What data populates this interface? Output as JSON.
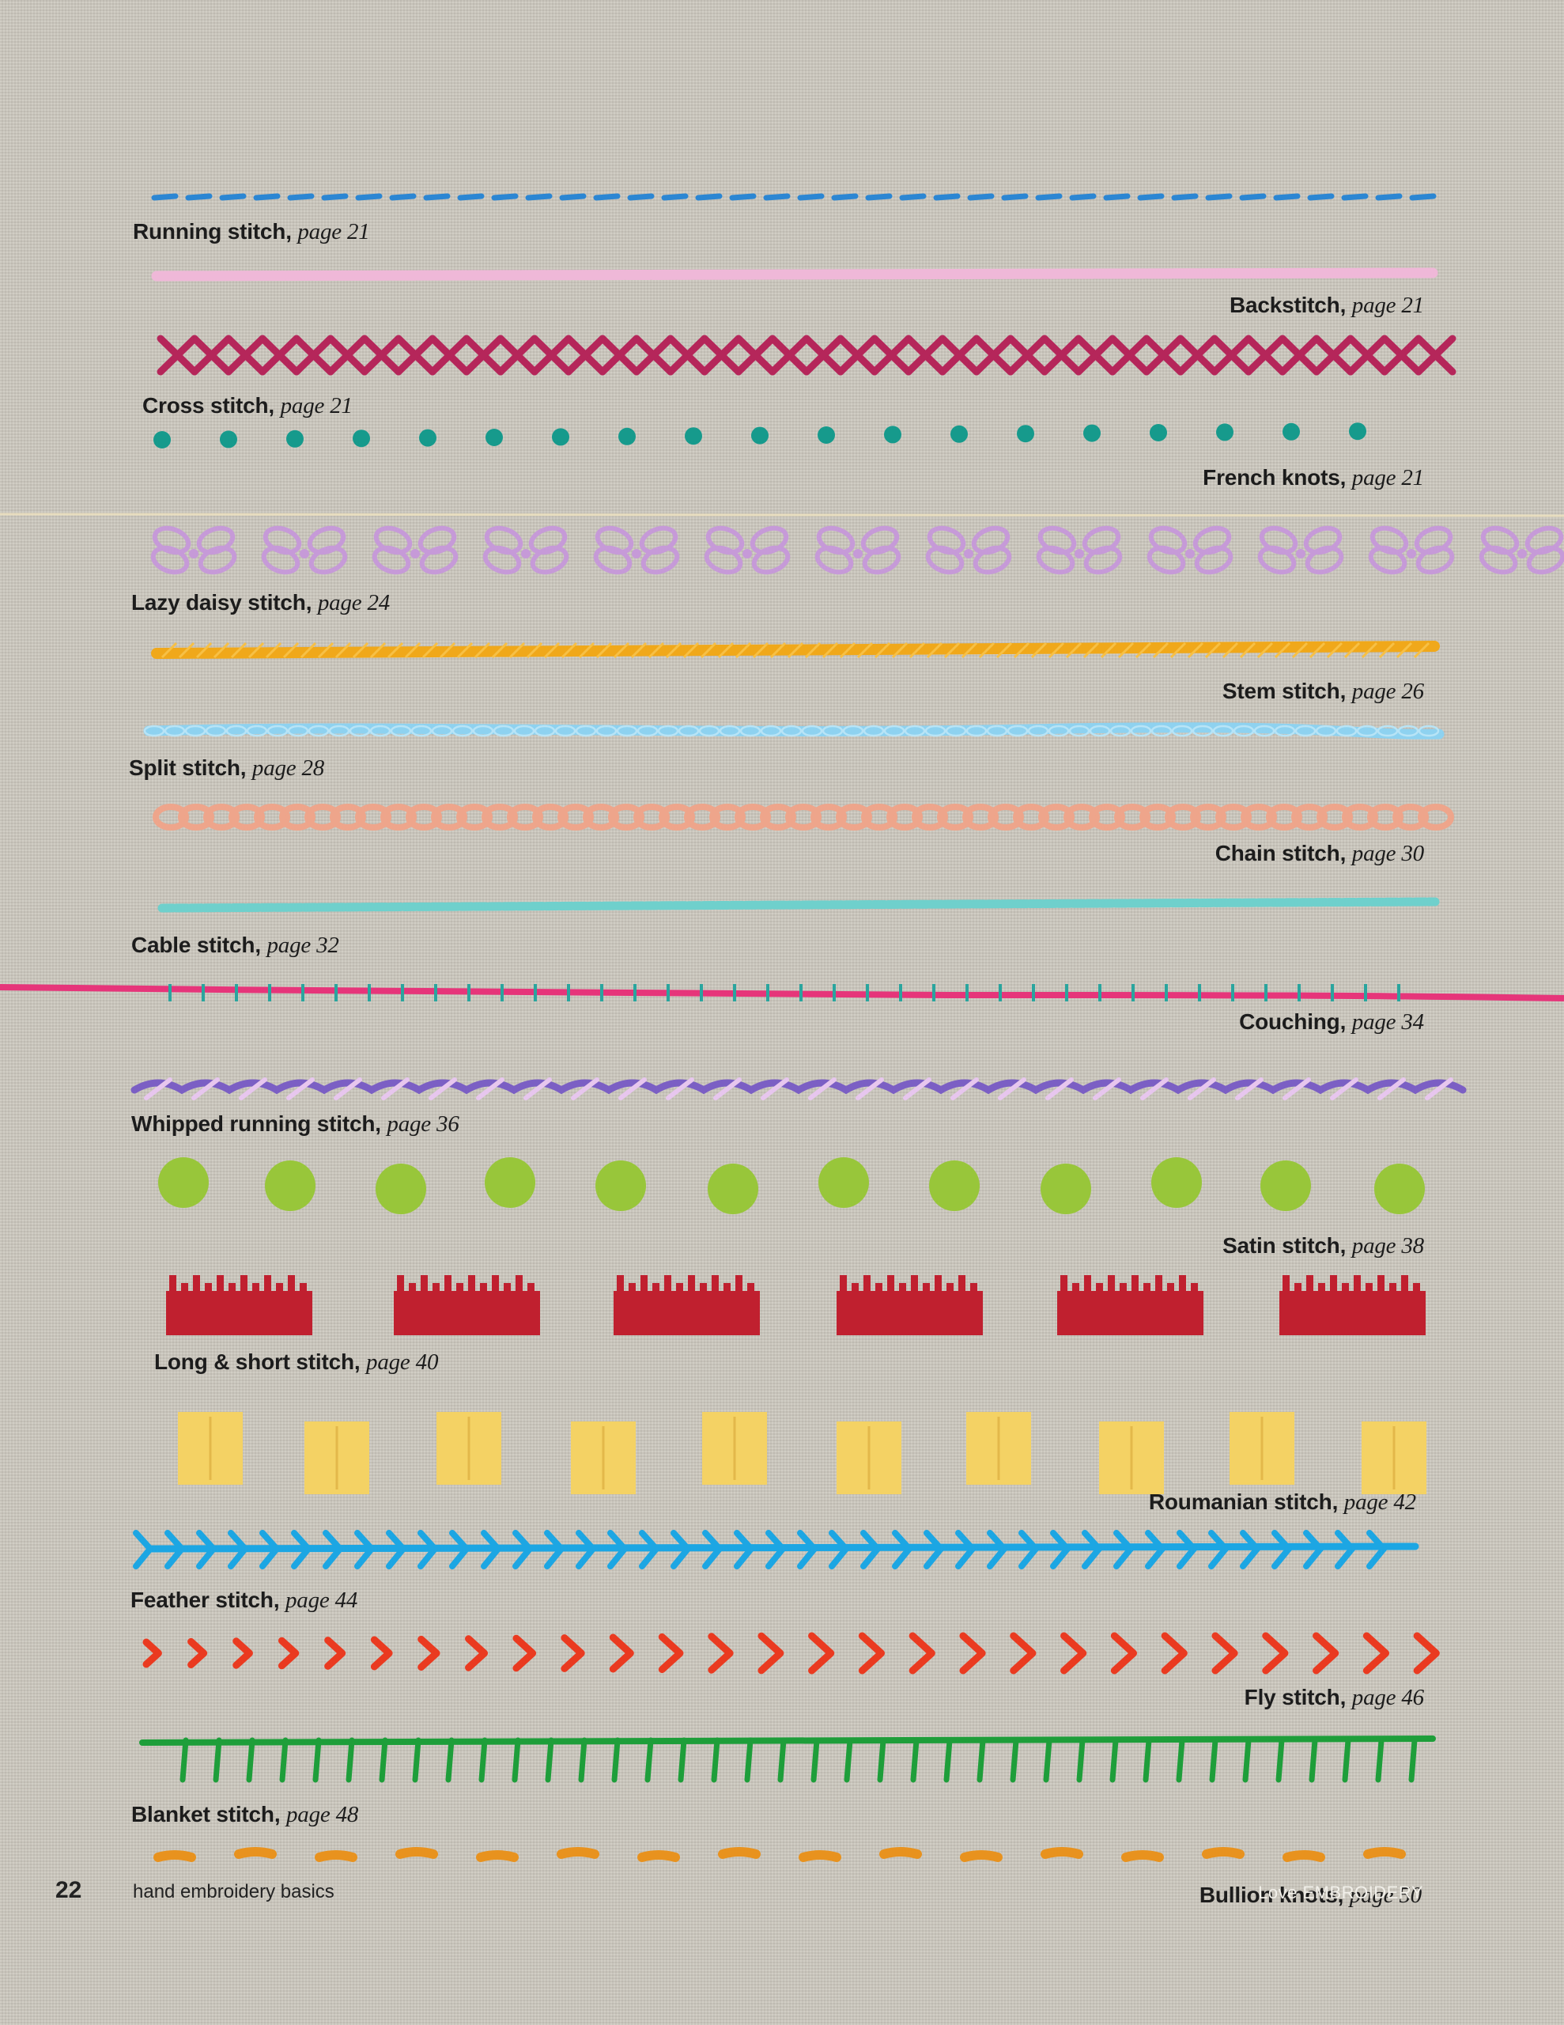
{
  "page": {
    "number": "22",
    "section": "hand embroidery basics",
    "brand_light": "Love ",
    "brand_strong": "EMBROIDERY"
  },
  "stitches": [
    {
      "name": "Running stitch",
      "page": "page 21"
    },
    {
      "name": "Backstitch",
      "page": "page 21"
    },
    {
      "name": "Cross stitch",
      "page": "page 21"
    },
    {
      "name": "French knots",
      "page": "page 21"
    },
    {
      "name": "Lazy daisy stitch",
      "page": "page 24"
    },
    {
      "name": "Stem stitch",
      "page": "page 26"
    },
    {
      "name": "Split stitch",
      "page": "page 28"
    },
    {
      "name": "Chain stitch",
      "page": "page 30"
    },
    {
      "name": "Cable stitch",
      "page": "page 32"
    },
    {
      "name": "Couching",
      "page": "page 34"
    },
    {
      "name": "Whipped running stitch",
      "page": "page 36"
    },
    {
      "name": "Satin stitch",
      "page": "page 38"
    },
    {
      "name": "Long & short stitch",
      "page": "page 40"
    },
    {
      "name": "Roumanian stitch",
      "page": "page 42"
    },
    {
      "name": "Feather stitch",
      "page": "page 44"
    },
    {
      "name": "Fly stitch",
      "page": "page 46"
    },
    {
      "name": "Blanket stitch",
      "page": "page 48"
    },
    {
      "name": "Bullion knots",
      "page": "page 50"
    }
  ],
  "thread_colors": {
    "running": "#2b86d3",
    "back": "#efb8d8",
    "cross": "#b5265a",
    "french": "#169a8c",
    "lazy_daisy": "#c69ad8",
    "stem": "#f0a81a",
    "split": "#8ed2f0",
    "chain": "#eea58b",
    "cable": "#6fd0cc",
    "couching_laid": "#e6357a",
    "couching_tie": "#2aa59e",
    "whipped_base": "#7b5fc4",
    "whipped_wrap": "#e7c6ee",
    "satin": "#98c63a",
    "long_short": "#c0202f",
    "roumanian": "#f4d264",
    "feather": "#1ca6e3",
    "fly": "#ea3a20",
    "blanket": "#1e9e3a",
    "bullion": "#e8921e"
  }
}
